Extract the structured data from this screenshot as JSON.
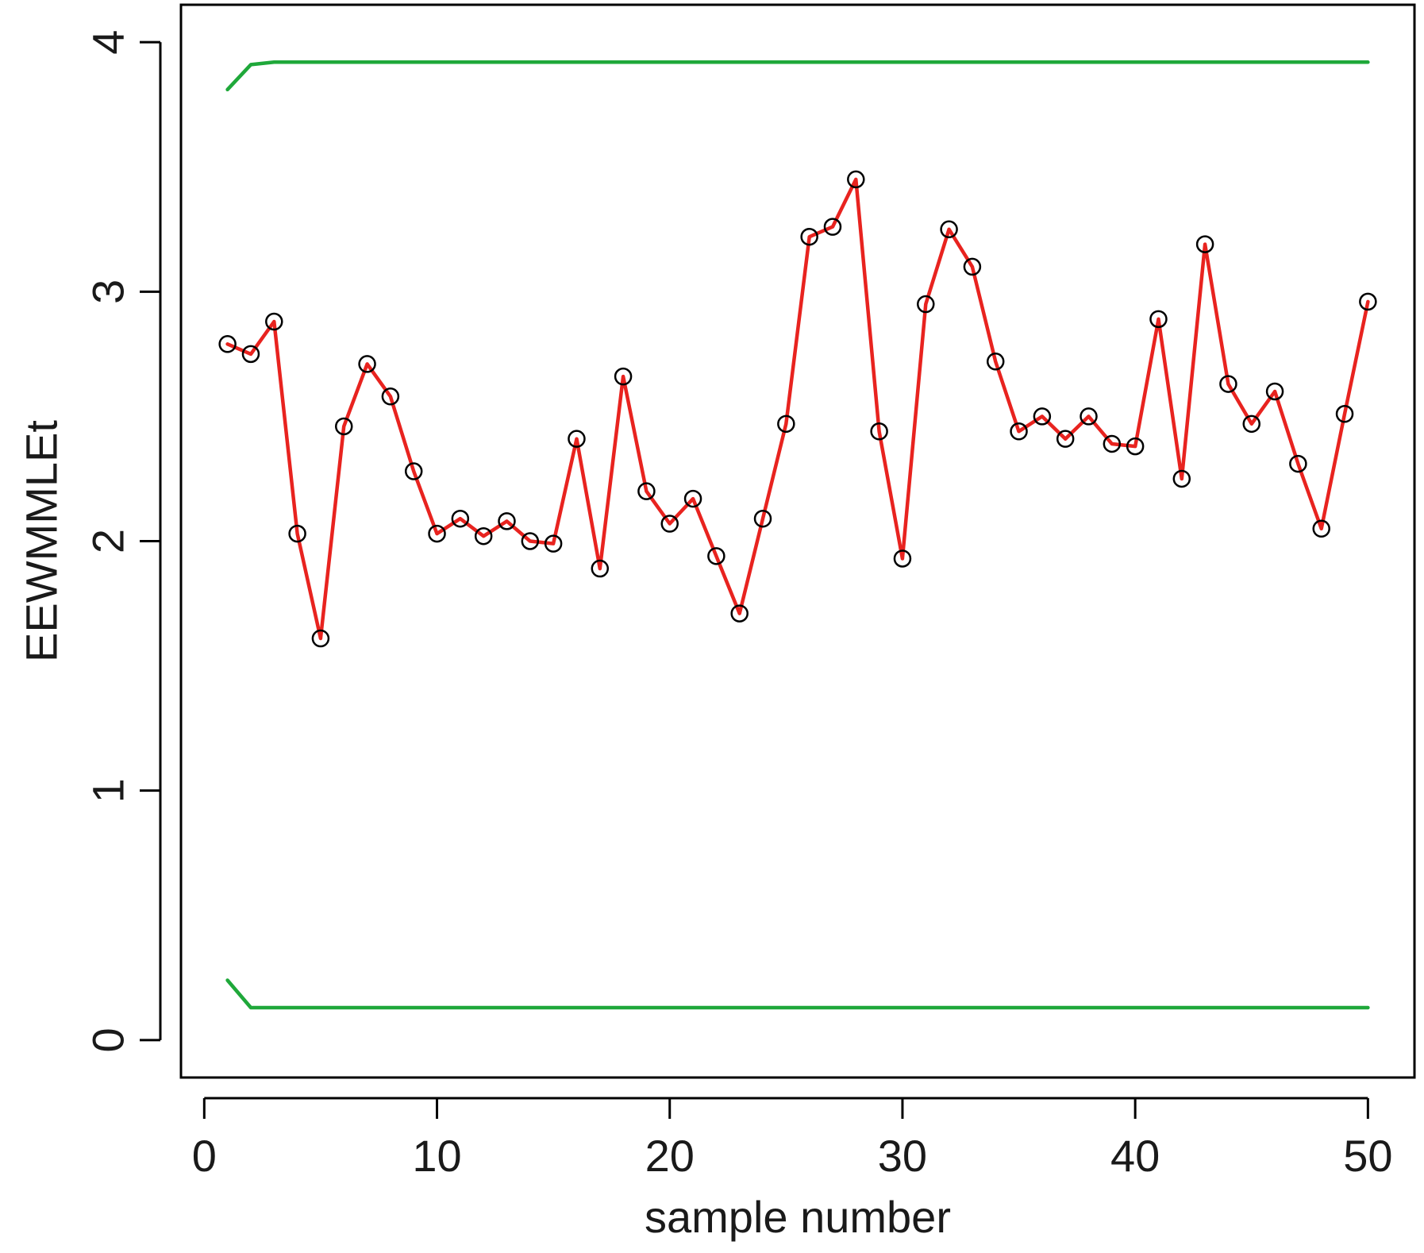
{
  "chart_data": {
    "type": "line",
    "title": "",
    "xlabel": "sample number",
    "ylabel": "EEWMMLEt",
    "xlim": [
      -1,
      52
    ],
    "ylim": [
      -0.15,
      4.15
    ],
    "x_ticks": [
      0,
      10,
      20,
      30,
      40,
      50
    ],
    "y_ticks": [
      0,
      1,
      2,
      3,
      4
    ],
    "grid": false,
    "legend": "none",
    "series": [
      {
        "role": "statistic",
        "color": "#e8231f",
        "marker": "open-circle",
        "marker_color": "#000000",
        "x": [
          1,
          2,
          3,
          4,
          5,
          6,
          7,
          8,
          9,
          10,
          11,
          12,
          13,
          14,
          15,
          16,
          17,
          18,
          19,
          20,
          21,
          22,
          23,
          24,
          25,
          26,
          27,
          28,
          29,
          30,
          31,
          32,
          33,
          34,
          35,
          36,
          37,
          38,
          39,
          40,
          41,
          42,
          43,
          44,
          45,
          46,
          47,
          48,
          49,
          50
        ],
        "values": [
          2.79,
          2.75,
          2.88,
          2.03,
          1.61,
          2.46,
          2.71,
          2.58,
          2.28,
          2.03,
          2.09,
          2.02,
          2.08,
          2.0,
          1.99,
          2.41,
          1.89,
          2.66,
          2.2,
          2.07,
          2.17,
          1.94,
          1.71,
          2.09,
          2.47,
          3.22,
          3.26,
          3.45,
          2.44,
          1.93,
          2.95,
          3.25,
          3.1,
          2.72,
          2.44,
          2.5,
          2.41,
          2.5,
          2.39,
          2.38,
          2.89,
          2.25,
          3.19,
          2.63,
          2.47,
          2.6,
          2.31,
          2.05,
          2.51,
          2.96
        ]
      },
      {
        "role": "upper-limit",
        "color": "#1fa83a",
        "x": [
          1,
          2,
          3,
          4,
          5,
          6,
          7,
          8,
          9,
          10,
          11,
          12,
          13,
          14,
          15,
          16,
          17,
          18,
          19,
          20,
          21,
          22,
          23,
          24,
          25,
          26,
          27,
          28,
          29,
          30,
          31,
          32,
          33,
          34,
          35,
          36,
          37,
          38,
          39,
          40,
          41,
          42,
          43,
          44,
          45,
          46,
          47,
          48,
          49,
          50
        ],
        "values": [
          3.81,
          3.91,
          3.92,
          3.92,
          3.92,
          3.92,
          3.92,
          3.92,
          3.92,
          3.92,
          3.92,
          3.92,
          3.92,
          3.92,
          3.92,
          3.92,
          3.92,
          3.92,
          3.92,
          3.92,
          3.92,
          3.92,
          3.92,
          3.92,
          3.92,
          3.92,
          3.92,
          3.92,
          3.92,
          3.92,
          3.92,
          3.92,
          3.92,
          3.92,
          3.92,
          3.92,
          3.92,
          3.92,
          3.92,
          3.92,
          3.92,
          3.92,
          3.92,
          3.92,
          3.92,
          3.92,
          3.92,
          3.92,
          3.92,
          3.92
        ]
      },
      {
        "role": "lower-limit",
        "color": "#1fa83a",
        "x": [
          1,
          2,
          3,
          4,
          5,
          6,
          7,
          8,
          9,
          10,
          11,
          12,
          13,
          14,
          15,
          16,
          17,
          18,
          19,
          20,
          21,
          22,
          23,
          24,
          25,
          26,
          27,
          28,
          29,
          30,
          31,
          32,
          33,
          34,
          35,
          36,
          37,
          38,
          39,
          40,
          41,
          42,
          43,
          44,
          45,
          46,
          47,
          48,
          49,
          50
        ],
        "values": [
          0.24,
          0.13,
          0.13,
          0.13,
          0.13,
          0.13,
          0.13,
          0.13,
          0.13,
          0.13,
          0.13,
          0.13,
          0.13,
          0.13,
          0.13,
          0.13,
          0.13,
          0.13,
          0.13,
          0.13,
          0.13,
          0.13,
          0.13,
          0.13,
          0.13,
          0.13,
          0.13,
          0.13,
          0.13,
          0.13,
          0.13,
          0.13,
          0.13,
          0.13,
          0.13,
          0.13,
          0.13,
          0.13,
          0.13,
          0.13,
          0.13,
          0.13,
          0.13,
          0.13,
          0.13,
          0.13,
          0.13,
          0.13,
          0.13,
          0.13
        ]
      }
    ]
  }
}
